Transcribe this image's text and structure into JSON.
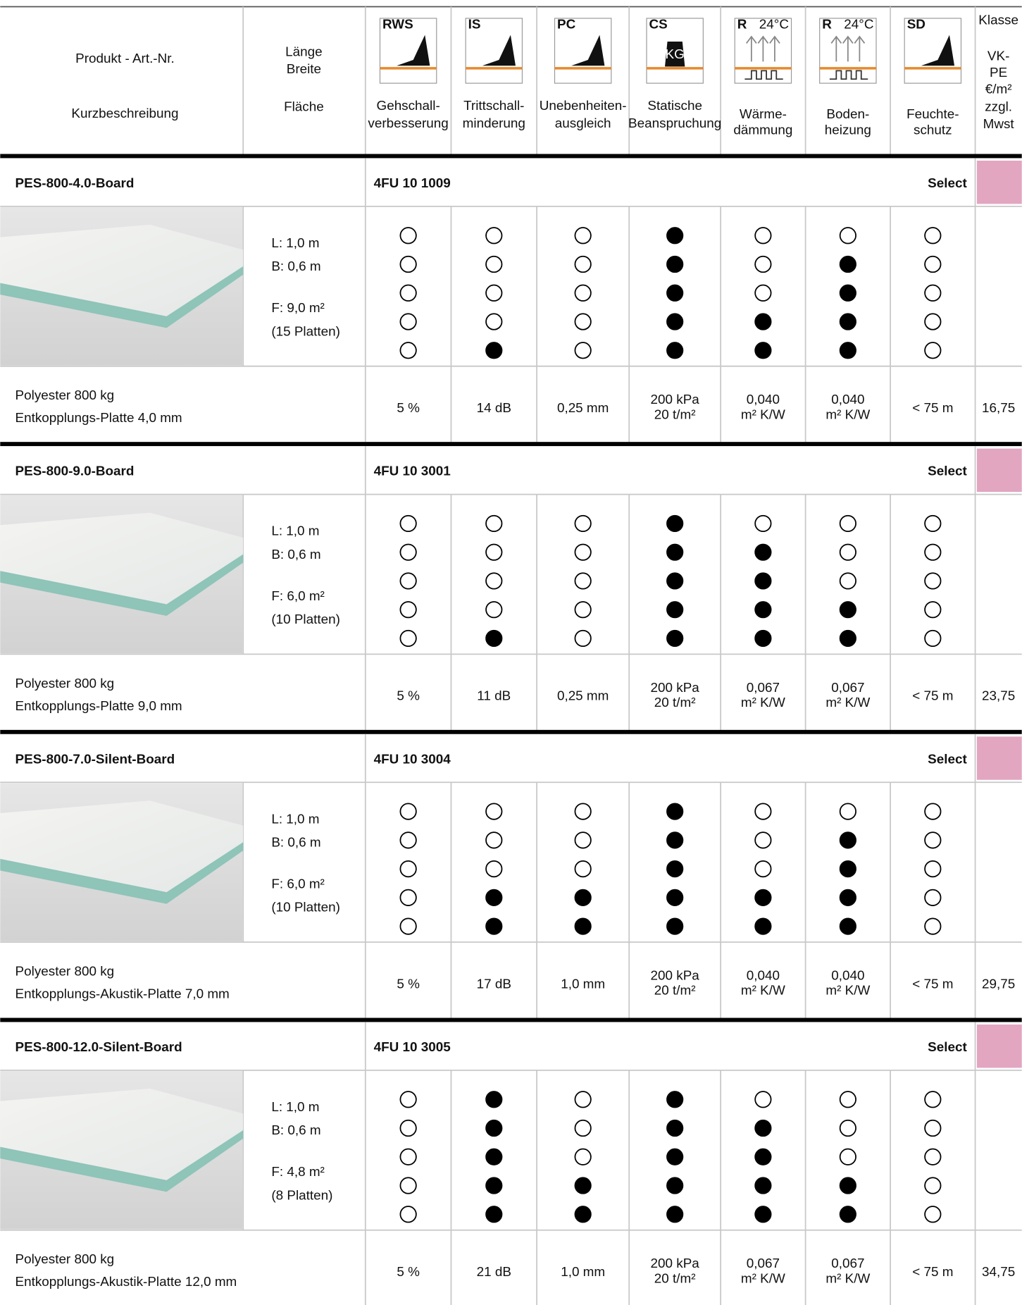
{
  "header": {
    "product_label": "Produkt - Art.-Nr.",
    "description_label": "Kurzbeschreibung",
    "size_labels": [
      "Länge",
      "Breite",
      "Fläche"
    ],
    "columns": [
      {
        "tag": "RWS",
        "label": [
          "Gehschall-",
          "verbesserung"
        ]
      },
      {
        "tag": "IS",
        "label": [
          "Trittschall-",
          "minderung"
        ]
      },
      {
        "tag": "PC",
        "label": [
          "Unebenheiten-",
          "ausgleich"
        ]
      },
      {
        "tag": "CS",
        "badge": "KG",
        "label": [
          "Statische",
          "Beanspruchung"
        ]
      },
      {
        "tag": "R",
        "temp": "24°C",
        "label": [
          "Wärme-",
          "dämmung"
        ]
      },
      {
        "tag": "R",
        "temp": "24°C",
        "label": [
          "Boden-",
          "heizung"
        ]
      },
      {
        "tag": "SD",
        "label": [
          "Feuchte-",
          "schutz"
        ]
      }
    ],
    "class_label": "Klasse",
    "price_label": [
      "VK-",
      "PE",
      "€/m²",
      "zzgl.",
      "Mwst"
    ]
  },
  "products": [
    {
      "name": "PES-800-4.0-Board",
      "article": "4FU 10 1009",
      "select": "Select",
      "dims": [
        "L: 1,0 m",
        "B: 0,6 m",
        "F: 9,0 m²",
        "(15 Platten)"
      ],
      "ratings": [
        [
          false,
          false,
          false,
          false,
          false
        ],
        [
          false,
          false,
          false,
          false,
          true
        ],
        [
          false,
          false,
          false,
          false,
          false
        ],
        [
          true,
          true,
          true,
          true,
          true
        ],
        [
          false,
          false,
          false,
          true,
          true
        ],
        [
          false,
          true,
          true,
          true,
          true
        ],
        [
          false,
          false,
          false,
          false,
          false
        ]
      ],
      "description": [
        "Polyester 800 kg",
        "Entkopplungs-Platte 4,0 mm"
      ],
      "values": [
        {
          "main": "5 %"
        },
        {
          "main": "14 dB"
        },
        {
          "main": "0,25 mm"
        },
        {
          "main": "200 kPa",
          "sub": "20 t/m²"
        },
        {
          "main": "0,040",
          "sub": "m² K/W"
        },
        {
          "main": "0,040",
          "sub": "m² K/W"
        },
        {
          "main": "< 75 m"
        }
      ],
      "price": "16,75"
    },
    {
      "name": "PES-800-9.0-Board",
      "article": "4FU 10 3001",
      "select": "Select",
      "dims": [
        "L: 1,0 m",
        "B: 0,6 m",
        "F: 6,0 m²",
        "(10 Platten)"
      ],
      "ratings": [
        [
          false,
          false,
          false,
          false,
          false
        ],
        [
          false,
          false,
          false,
          false,
          true
        ],
        [
          false,
          false,
          false,
          false,
          false
        ],
        [
          true,
          true,
          true,
          true,
          true
        ],
        [
          false,
          true,
          true,
          true,
          true
        ],
        [
          false,
          false,
          false,
          true,
          true
        ],
        [
          false,
          false,
          false,
          false,
          false
        ]
      ],
      "description": [
        "Polyester 800 kg",
        "Entkopplungs-Platte 9,0 mm"
      ],
      "values": [
        {
          "main": "5 %"
        },
        {
          "main": "11 dB"
        },
        {
          "main": "0,25 mm"
        },
        {
          "main": "200 kPa",
          "sub": "20 t/m²"
        },
        {
          "main": "0,067",
          "sub": "m² K/W"
        },
        {
          "main": "0,067",
          "sub": "m² K/W"
        },
        {
          "main": "< 75 m"
        }
      ],
      "price": "23,75"
    },
    {
      "name": "PES-800-7.0-Silent-Board",
      "article": "4FU 10 3004",
      "select": "Select",
      "dims": [
        "L: 1,0 m",
        "B: 0,6 m",
        "F: 6,0 m²",
        "(10 Platten)"
      ],
      "ratings": [
        [
          false,
          false,
          false,
          false,
          false
        ],
        [
          false,
          false,
          false,
          true,
          true
        ],
        [
          false,
          false,
          false,
          true,
          true
        ],
        [
          true,
          true,
          true,
          true,
          true
        ],
        [
          false,
          false,
          false,
          true,
          true
        ],
        [
          false,
          true,
          true,
          true,
          true
        ],
        [
          false,
          false,
          false,
          false,
          false
        ]
      ],
      "description": [
        "Polyester 800 kg",
        "Entkopplungs-Akustik-Platte 7,0 mm"
      ],
      "values": [
        {
          "main": "5 %"
        },
        {
          "main": "17 dB"
        },
        {
          "main": "1,0 mm"
        },
        {
          "main": "200 kPa",
          "sub": "20 t/m²"
        },
        {
          "main": "0,040",
          "sub": "m² K/W"
        },
        {
          "main": "0,040",
          "sub": "m² K/W"
        },
        {
          "main": "< 75 m"
        }
      ],
      "price": "29,75"
    },
    {
      "name": "PES-800-12.0-Silent-Board",
      "article": "4FU 10 3005",
      "select": "Select",
      "dims": [
        "L: 1,0 m",
        "B: 0,6 m",
        "F: 4,8 m²",
        "(8 Platten)"
      ],
      "ratings": [
        [
          false,
          false,
          false,
          false,
          false
        ],
        [
          true,
          true,
          true,
          true,
          true
        ],
        [
          false,
          false,
          false,
          true,
          true
        ],
        [
          true,
          true,
          true,
          true,
          true
        ],
        [
          false,
          true,
          true,
          true,
          true
        ],
        [
          false,
          false,
          false,
          true,
          true
        ],
        [
          false,
          false,
          false,
          false,
          false
        ]
      ],
      "description": [
        "Polyester 800 kg",
        "Entkopplungs-Akustik-Platte 12,0 mm"
      ],
      "values": [
        {
          "main": "5 %"
        },
        {
          "main": "21 dB"
        },
        {
          "main": "1,0 mm"
        },
        {
          "main": "200 kPa",
          "sub": "20 t/m²"
        },
        {
          "main": "0,067",
          "sub": "m² K/W"
        },
        {
          "main": "0,067",
          "sub": "m² K/W"
        },
        {
          "main": "< 75 m"
        }
      ],
      "price": "34,75"
    }
  ]
}
